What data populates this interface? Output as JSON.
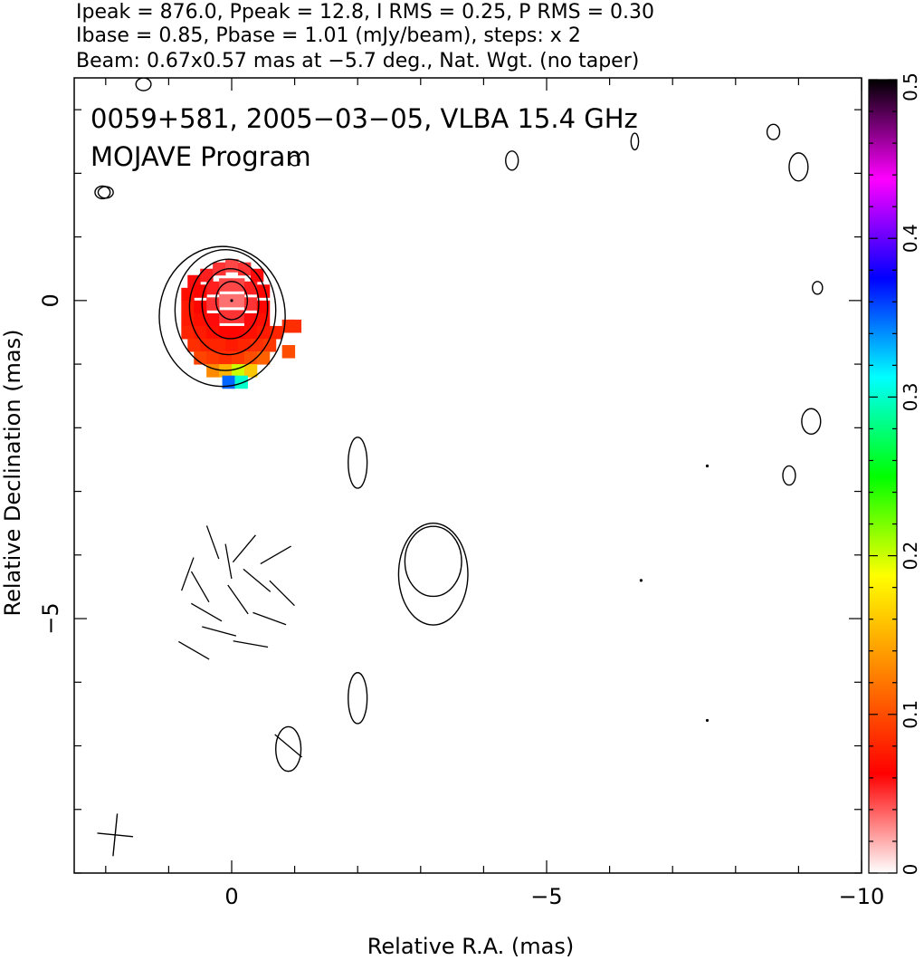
{
  "header": {
    "line1": "Ipeak = 876.0, Ppeak = 12.8, I RMS = 0.25, P RMS = 0.30",
    "line2": "Ibase = 0.85, Pbase = 1.01 (mJy/beam), steps: x 2",
    "line3": "Beam: 0.67x0.57 mas at −5.7 deg., Nat. Wgt. (no taper)"
  },
  "chart_data": {
    "type": "heatmap",
    "title": "0059+581, 2005−03−05, VLBA 15.4 GHz",
    "subtitle": "MOJAVE Program",
    "xlabel": "Relative R.A. (mas)",
    "ylabel": "Relative Declination (mas)",
    "xlim": [
      2.5,
      -10.0
    ],
    "ylim": [
      -9.0,
      3.5
    ],
    "x_reversed": true,
    "x_ticks": [
      {
        "v": 0,
        "label": "0"
      },
      {
        "v": -5,
        "label": "−5"
      },
      {
        "v": -10,
        "label": "−10"
      }
    ],
    "y_ticks": [
      {
        "v": 0,
        "label": "0"
      },
      {
        "v": -5,
        "label": "−5"
      }
    ],
    "colorbar": {
      "range": [
        0,
        0.5
      ],
      "ticks": [
        {
          "v": 0,
          "label": "0"
        },
        {
          "v": 0.1,
          "label": "0.1"
        },
        {
          "v": 0.2,
          "label": "0.2"
        },
        {
          "v": 0.3,
          "label": "0.3"
        },
        {
          "v": 0.4,
          "label": "0.4"
        },
        {
          "v": 0.5,
          "label": "0.5"
        }
      ],
      "colors": [
        "#ffffff",
        "#ff0000",
        "#ff8000",
        "#ffff00",
        "#00ff00",
        "#00ffff",
        "#0000ff",
        "#ff00ff",
        "#000000"
      ]
    },
    "contours": [
      {
        "cx": 0,
        "cy": 0,
        "rx": 0.25,
        "ry": 0.3
      },
      {
        "cx": 0.02,
        "cy": -0.05,
        "rx": 0.45,
        "ry": 0.55
      },
      {
        "cx": 0.05,
        "cy": -0.1,
        "rx": 0.62,
        "ry": 0.75
      },
      {
        "cx": 0.1,
        "cy": -0.15,
        "rx": 0.8,
        "ry": 0.95
      },
      {
        "cx": 0.15,
        "cy": -0.25,
        "rx": 1.0,
        "ry": 1.1
      },
      {
        "cx": -3.2,
        "cy": -4.1,
        "rx": 0.45,
        "ry": 0.55
      },
      {
        "cx": -3.2,
        "cy": -4.3,
        "rx": 0.55,
        "ry": 0.8
      },
      {
        "cx": -0.9,
        "cy": -7.05,
        "rx": 0.2,
        "ry": 0.35
      },
      {
        "cx": -2.0,
        "cy": -2.55,
        "rx": 0.15,
        "ry": 0.4
      },
      {
        "cx": -2.0,
        "cy": -6.25,
        "rx": 0.15,
        "ry": 0.4
      },
      {
        "cx": 2.05,
        "cy": 1.7,
        "rx": 0.12,
        "ry": 0.1
      },
      {
        "cx": -4.45,
        "cy": 2.2,
        "rx": 0.1,
        "ry": 0.15
      },
      {
        "cx": -6.4,
        "cy": 2.5,
        "rx": 0.06,
        "ry": 0.13
      },
      {
        "cx": -8.6,
        "cy": 2.65,
        "rx": 0.1,
        "ry": 0.12
      },
      {
        "cx": -9.0,
        "cy": 2.1,
        "rx": 0.15,
        "ry": 0.22
      },
      {
        "cx": -9.3,
        "cy": 0.2,
        "rx": 0.08,
        "ry": 0.1
      },
      {
        "cx": -9.2,
        "cy": -1.9,
        "rx": 0.15,
        "ry": 0.2
      },
      {
        "cx": -8.85,
        "cy": -2.75,
        "rx": 0.1,
        "ry": 0.15
      },
      {
        "cx": -1.0,
        "cy": 2.2,
        "rx": 0.08,
        "ry": 0.08
      },
      {
        "cx": 1.4,
        "cy": 3.4,
        "rx": 0.12,
        "ry": 0.1
      },
      {
        "cx": 2.0,
        "cy": 1.7,
        "rx": 0.12,
        "ry": 0.09
      }
    ],
    "evpa_ticks": [
      {
        "x": 0.7,
        "y": -4.3,
        "angle": -20
      },
      {
        "x": 0.5,
        "y": -4.5,
        "angle": 30
      },
      {
        "x": 0.4,
        "y": -4.9,
        "angle": 60
      },
      {
        "x": 0.2,
        "y": -5.2,
        "angle": 75
      },
      {
        "x": 0.05,
        "y": -4.1,
        "angle": 10
      },
      {
        "x": -0.2,
        "y": -3.9,
        "angle": -40
      },
      {
        "x": -0.4,
        "y": -4.4,
        "angle": 50
      },
      {
        "x": -0.6,
        "y": -5.0,
        "angle": 70
      },
      {
        "x": -0.3,
        "y": -5.4,
        "angle": 80
      },
      {
        "x": 0.3,
        "y": -3.8,
        "angle": 20
      },
      {
        "x": -0.7,
        "y": -4.0,
        "angle": -60
      },
      {
        "x": 0.6,
        "y": -5.5,
        "angle": 60
      },
      {
        "x": -0.1,
        "y": -4.7,
        "angle": 35
      },
      {
        "x": -0.8,
        "y": -4.6,
        "angle": 45
      },
      {
        "x": -0.9,
        "y": -7.0,
        "angle": 50
      }
    ],
    "pol_cells": [
      {
        "x": 0.6,
        "y": 0.3,
        "v": 0.06
      },
      {
        "x": 0.4,
        "y": 0.4,
        "v": 0.055
      },
      {
        "x": 0.2,
        "y": 0.5,
        "v": 0.05
      },
      {
        "x": 0.0,
        "y": 0.55,
        "v": 0.045
      },
      {
        "x": -0.2,
        "y": 0.5,
        "v": 0.05
      },
      {
        "x": -0.4,
        "y": 0.4,
        "v": 0.06
      },
      {
        "x": 0.7,
        "y": 0.1,
        "v": 0.07
      },
      {
        "x": 0.5,
        "y": 0.15,
        "v": 0.065
      },
      {
        "x": 0.3,
        "y": 0.2,
        "v": 0.055
      },
      {
        "x": 0.1,
        "y": 0.25,
        "v": 0.045
      },
      {
        "x": -0.1,
        "y": 0.25,
        "v": 0.045
      },
      {
        "x": -0.3,
        "y": 0.2,
        "v": 0.055
      },
      {
        "x": -0.5,
        "y": 0.15,
        "v": 0.065
      },
      {
        "x": 0.7,
        "y": -0.1,
        "v": 0.075
      },
      {
        "x": 0.5,
        "y": -0.1,
        "v": 0.065
      },
      {
        "x": 0.3,
        "y": -0.05,
        "v": 0.05
      },
      {
        "x": 0.1,
        "y": 0.0,
        "v": 0.035
      },
      {
        "x": -0.1,
        "y": 0.0,
        "v": 0.035
      },
      {
        "x": -0.3,
        "y": -0.05,
        "v": 0.05
      },
      {
        "x": -0.5,
        "y": -0.1,
        "v": 0.065
      },
      {
        "x": 0.7,
        "y": -0.3,
        "v": 0.075
      },
      {
        "x": 0.5,
        "y": -0.3,
        "v": 0.07
      },
      {
        "x": 0.3,
        "y": -0.3,
        "v": 0.06
      },
      {
        "x": 0.1,
        "y": -0.25,
        "v": 0.05
      },
      {
        "x": -0.1,
        "y": -0.25,
        "v": 0.05
      },
      {
        "x": -0.3,
        "y": -0.3,
        "v": 0.06
      },
      {
        "x": -0.5,
        "y": -0.3,
        "v": 0.07
      },
      {
        "x": 0.7,
        "y": -0.5,
        "v": 0.08
      },
      {
        "x": 0.5,
        "y": -0.5,
        "v": 0.075
      },
      {
        "x": 0.3,
        "y": -0.5,
        "v": 0.07
      },
      {
        "x": 0.1,
        "y": -0.5,
        "v": 0.065
      },
      {
        "x": -0.1,
        "y": -0.5,
        "v": 0.065
      },
      {
        "x": -0.3,
        "y": -0.5,
        "v": 0.07
      },
      {
        "x": -0.5,
        "y": -0.5,
        "v": 0.075
      },
      {
        "x": -0.7,
        "y": -0.5,
        "v": 0.08
      },
      {
        "x": -0.9,
        "y": -0.4,
        "v": 0.085
      },
      {
        "x": -1.0,
        "y": -0.4,
        "v": 0.085
      },
      {
        "x": 0.6,
        "y": -0.7,
        "v": 0.085
      },
      {
        "x": 0.4,
        "y": -0.7,
        "v": 0.08
      },
      {
        "x": 0.2,
        "y": -0.7,
        "v": 0.08
      },
      {
        "x": 0.0,
        "y": -0.7,
        "v": 0.075
      },
      {
        "x": -0.2,
        "y": -0.7,
        "v": 0.08
      },
      {
        "x": -0.4,
        "y": -0.7,
        "v": 0.085
      },
      {
        "x": -0.6,
        "y": -0.7,
        "v": 0.09
      },
      {
        "x": -0.9,
        "y": -0.8,
        "v": 0.1
      },
      {
        "x": 0.5,
        "y": -0.9,
        "v": 0.095
      },
      {
        "x": 0.3,
        "y": -0.9,
        "v": 0.09
      },
      {
        "x": 0.1,
        "y": -0.9,
        "v": 0.085
      },
      {
        "x": -0.1,
        "y": -0.9,
        "v": 0.09
      },
      {
        "x": -0.3,
        "y": -0.9,
        "v": 0.1
      },
      {
        "x": -0.5,
        "y": -0.9,
        "v": 0.11
      },
      {
        "x": 0.3,
        "y": -1.1,
        "v": 0.13
      },
      {
        "x": 0.1,
        "y": -1.1,
        "v": 0.15
      },
      {
        "x": -0.1,
        "y": -1.1,
        "v": 0.2
      },
      {
        "x": -0.3,
        "y": -1.1,
        "v": 0.16
      },
      {
        "x": 0.05,
        "y": -1.28,
        "v": 0.35
      },
      {
        "x": -0.15,
        "y": -1.28,
        "v": 0.3
      }
    ],
    "core_dots": [
      {
        "x": 0,
        "y": 0
      },
      {
        "x": -7.55,
        "y": -2.6
      },
      {
        "x": -7.55,
        "y": -6.6
      },
      {
        "x": -6.5,
        "y": -4.4
      }
    ],
    "beam": {
      "x": 1.85,
      "y": -8.4,
      "major": 0.67,
      "minor": 0.57,
      "pa": -5.7
    }
  }
}
